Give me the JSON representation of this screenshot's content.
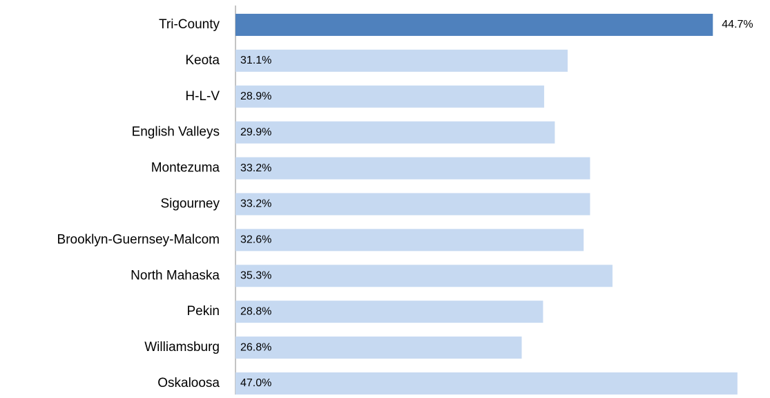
{
  "chart_data": {
    "type": "bar",
    "orientation": "horizontal",
    "categories": [
      "Tri-County",
      "Keota",
      "H-L-V",
      "English Valleys",
      "Montezuma",
      "Sigourney",
      "Brooklyn-Guernsey-Malcom",
      "North Mahaska",
      "Pekin",
      "Williamsburg",
      "Oskaloosa"
    ],
    "values": [
      44.7,
      31.1,
      28.9,
      29.9,
      33.2,
      33.2,
      32.6,
      35.3,
      28.8,
      26.8,
      47.0
    ],
    "value_labels": [
      "44.7%",
      "31.1%",
      "28.9%",
      "29.9%",
      "33.2%",
      "33.2%",
      "32.6%",
      "35.3%",
      "28.8%",
      "26.8%",
      "47.0%"
    ],
    "colors": [
      "#4f81bd",
      "#c6d9f1",
      "#c6d9f1",
      "#c6d9f1",
      "#c6d9f1",
      "#c6d9f1",
      "#c6d9f1",
      "#c6d9f1",
      "#c6d9f1",
      "#c6d9f1",
      "#c6d9f1"
    ]
  }
}
